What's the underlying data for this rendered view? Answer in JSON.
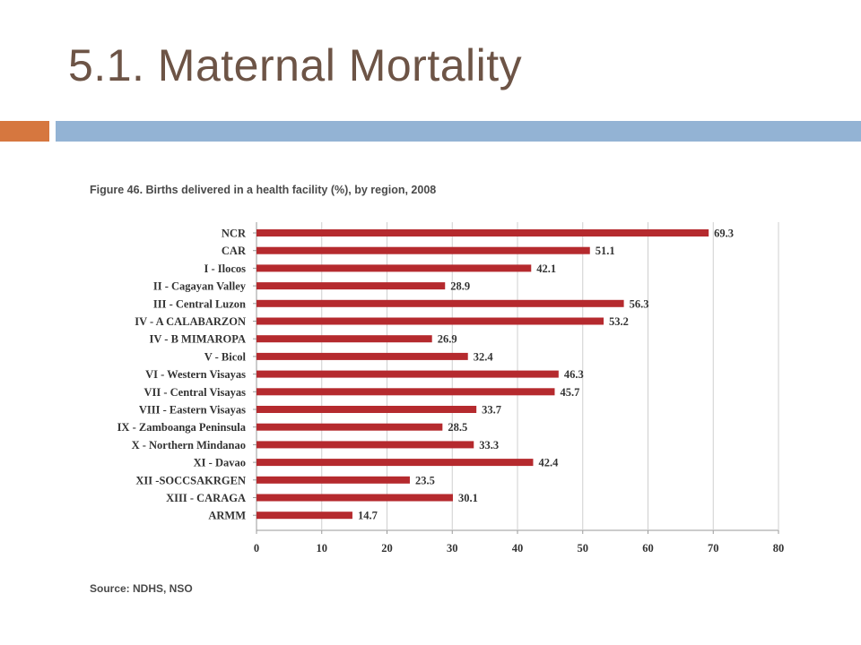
{
  "slide": {
    "title": "5.1. Maternal Mortality",
    "accent_colors": {
      "left": "#d6773f",
      "right": "#93b3d4"
    }
  },
  "figure": {
    "caption": "Figure 46. Births delivered in a health facility (%), by region, 2008",
    "source": "Source: NDHS, NSO"
  },
  "chart_data": {
    "type": "bar",
    "orientation": "horizontal",
    "title": "Figure 46. Births delivered in a health facility (%), by region, 2008",
    "xlabel": "",
    "ylabel": "",
    "xlim": [
      0,
      80
    ],
    "xticks": [
      0,
      10,
      20,
      30,
      40,
      50,
      60,
      70,
      80
    ],
    "grid": true,
    "bar_color": "#b52a2e",
    "data_labels": true,
    "categories": [
      "NCR",
      "CAR",
      "I - Ilocos",
      "II - Cagayan Valley",
      "III - Central Luzon",
      "IV - A CALABARZON",
      "IV - B MIMAROPA",
      "V - Bicol",
      "VI - Western Visayas",
      "VII - Central Visayas",
      "VIII - Eastern Visayas",
      "IX - Zamboanga Peninsula",
      "X - Northern Mindanao",
      "XI - Davao",
      "XII -SOCCSAKRGEN",
      "XIII - CARAGA",
      "ARMM"
    ],
    "values": [
      69.3,
      51.1,
      42.1,
      28.9,
      56.3,
      53.2,
      26.9,
      32.4,
      46.3,
      45.7,
      33.7,
      28.5,
      33.3,
      42.4,
      23.5,
      30.1,
      14.7
    ],
    "source": "Source: NDHS, NSO"
  }
}
